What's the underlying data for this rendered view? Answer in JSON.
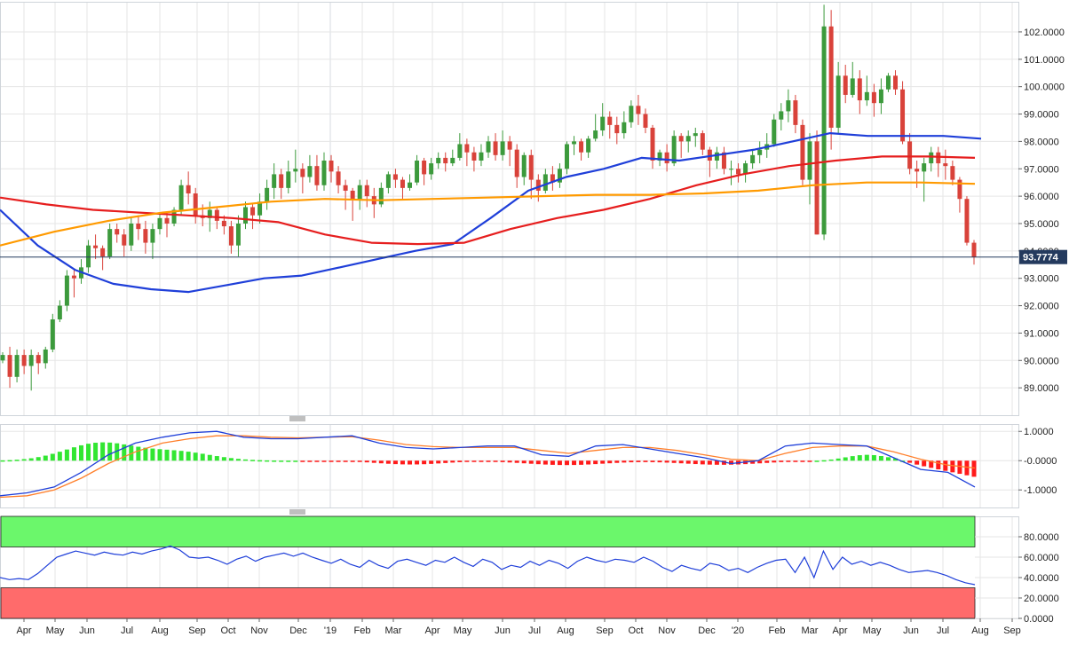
{
  "chart_data": [
    {
      "type": "candlestick",
      "panel": "price",
      "y_ticks": [
        89,
        90,
        91,
        92,
        93,
        94,
        95,
        96,
        97,
        98,
        99,
        100,
        101,
        102
      ],
      "y_tick_labels": [
        "89.0000",
        "90.0000",
        "91.0000",
        "92.0000",
        "93.0000",
        "94.0000",
        "95.0000",
        "96.0000",
        "97.0000",
        "98.0000",
        "99.0000",
        "100.0000",
        "101.0000",
        "102.0000"
      ],
      "ylim": [
        88.0,
        103.1
      ],
      "last_price_label": "93.7774",
      "last_price": 93.7774,
      "candles": [
        [
          90.0,
          90.2,
          89.9,
          90.3
        ],
        [
          90.2,
          89.4,
          89.0,
          90.5
        ],
        [
          89.4,
          90.2,
          89.2,
          90.4
        ],
        [
          90.2,
          89.8,
          89.5,
          90.4
        ],
        [
          89.8,
          90.2,
          88.9,
          90.4
        ],
        [
          90.2,
          89.9,
          89.5,
          90.3
        ],
        [
          89.9,
          90.4,
          89.7,
          90.5
        ],
        [
          90.4,
          91.5,
          90.3,
          91.7
        ],
        [
          91.5,
          92.0,
          91.4,
          92.2
        ],
        [
          92.0,
          93.1,
          91.8,
          93.3
        ],
        [
          93.1,
          93.0,
          92.3,
          93.3
        ],
        [
          93.0,
          93.4,
          92.8,
          93.7
        ],
        [
          93.4,
          94.2,
          93.2,
          94.4
        ],
        [
          94.2,
          94.1,
          93.7,
          94.6
        ],
        [
          94.1,
          93.8,
          93.3,
          94.2
        ],
        [
          93.8,
          94.8,
          93.7,
          95.0
        ],
        [
          94.8,
          94.6,
          94.3,
          95.0
        ],
        [
          94.6,
          94.2,
          93.8,
          94.8
        ],
        [
          94.2,
          95.0,
          94.0,
          95.2
        ],
        [
          95.0,
          94.8,
          94.4,
          95.3
        ],
        [
          94.8,
          94.3,
          93.9,
          95.1
        ],
        [
          94.3,
          94.8,
          93.7,
          95.0
        ],
        [
          94.8,
          95.2,
          94.6,
          95.4
        ],
        [
          95.2,
          95.0,
          94.5,
          95.4
        ],
        [
          95.0,
          95.5,
          94.9,
          95.6
        ],
        [
          95.5,
          96.4,
          95.3,
          96.6
        ],
        [
          96.4,
          96.1,
          95.7,
          96.9
        ],
        [
          96.1,
          95.3,
          95.0,
          96.3
        ],
        [
          95.3,
          95.2,
          94.9,
          95.7
        ],
        [
          95.2,
          95.5,
          94.7,
          95.8
        ],
        [
          95.5,
          95.1,
          94.8,
          95.6
        ],
        [
          95.1,
          94.9,
          94.6,
          95.3
        ],
        [
          94.9,
          94.2,
          93.9,
          95.1
        ],
        [
          94.2,
          95.0,
          93.8,
          95.3
        ],
        [
          95.0,
          95.6,
          94.8,
          95.8
        ],
        [
          95.6,
          95.3,
          94.8,
          95.7
        ],
        [
          95.3,
          95.8,
          95.0,
          96.1
        ],
        [
          95.8,
          96.3,
          95.5,
          96.6
        ],
        [
          96.3,
          96.8,
          95.9,
          97.2
        ],
        [
          96.8,
          96.3,
          95.9,
          97.0
        ],
        [
          96.3,
          96.9,
          96.1,
          97.3
        ],
        [
          96.9,
          97.0,
          96.5,
          97.7
        ],
        [
          97.0,
          96.7,
          96.1,
          97.2
        ],
        [
          96.7,
          97.1,
          96.5,
          97.5
        ],
        [
          97.1,
          96.4,
          96.2,
          97.5
        ],
        [
          96.4,
          97.3,
          96.2,
          97.6
        ],
        [
          97.3,
          96.9,
          96.5,
          97.5
        ],
        [
          96.9,
          96.4,
          96.1,
          97.1
        ],
        [
          96.4,
          96.2,
          95.5,
          96.6
        ],
        [
          96.2,
          95.9,
          95.1,
          96.3
        ],
        [
          95.9,
          96.4,
          95.5,
          96.6
        ],
        [
          96.4,
          96.0,
          95.6,
          96.6
        ],
        [
          96.0,
          95.7,
          95.2,
          96.3
        ],
        [
          95.7,
          96.3,
          95.6,
          96.5
        ],
        [
          96.3,
          96.8,
          96.1,
          96.9
        ],
        [
          96.8,
          96.6,
          96.3,
          97.0
        ],
        [
          96.6,
          96.3,
          95.9,
          96.7
        ],
        [
          96.3,
          96.5,
          96.2,
          96.8
        ],
        [
          96.5,
          97.3,
          96.4,
          97.5
        ],
        [
          97.3,
          96.8,
          96.4,
          97.4
        ],
        [
          96.8,
          97.2,
          96.6,
          97.4
        ],
        [
          97.2,
          97.4,
          97.0,
          97.6
        ],
        [
          97.4,
          97.2,
          96.9,
          97.6
        ],
        [
          97.2,
          97.4,
          97.1,
          97.7
        ],
        [
          97.4,
          97.9,
          97.3,
          98.3
        ],
        [
          97.9,
          97.6,
          97.1,
          98.1
        ],
        [
          97.6,
          97.3,
          96.9,
          97.8
        ],
        [
          97.3,
          97.6,
          97.1,
          97.9
        ],
        [
          97.6,
          98.0,
          97.4,
          98.2
        ],
        [
          98.0,
          97.5,
          97.3,
          98.3
        ],
        [
          97.5,
          98.0,
          97.3,
          98.4
        ],
        [
          98.0,
          97.7,
          97.1,
          98.2
        ],
        [
          97.7,
          96.7,
          96.3,
          97.9
        ],
        [
          96.7,
          97.5,
          96.4,
          97.6
        ],
        [
          97.5,
          96.6,
          95.9,
          97.7
        ],
        [
          96.6,
          96.2,
          95.8,
          96.8
        ],
        [
          96.2,
          96.8,
          96.1,
          97.0
        ],
        [
          96.8,
          96.5,
          96.2,
          97.1
        ],
        [
          96.5,
          97.0,
          96.3,
          97.2
        ],
        [
          97.0,
          97.9,
          96.8,
          98.0
        ],
        [
          97.9,
          98.0,
          97.5,
          98.2
        ],
        [
          98.0,
          97.6,
          97.3,
          98.1
        ],
        [
          97.6,
          98.1,
          97.4,
          98.2
        ],
        [
          98.1,
          98.4,
          98.0,
          99.0
        ],
        [
          98.4,
          98.9,
          98.2,
          99.4
        ],
        [
          98.9,
          98.6,
          98.1,
          99.1
        ],
        [
          98.6,
          98.3,
          97.9,
          98.9
        ],
        [
          98.3,
          98.7,
          98.1,
          99.1
        ],
        [
          98.7,
          99.3,
          98.5,
          99.5
        ],
        [
          99.3,
          99.0,
          98.6,
          99.7
        ],
        [
          99.0,
          98.5,
          98.3,
          99.2
        ],
        [
          98.5,
          97.3,
          97.0,
          98.6
        ],
        [
          97.3,
          97.6,
          97.1,
          97.7
        ],
        [
          97.6,
          97.2,
          96.9,
          97.9
        ],
        [
          97.2,
          98.2,
          97.1,
          98.4
        ],
        [
          98.2,
          98.0,
          97.4,
          98.3
        ],
        [
          98.0,
          98.2,
          97.6,
          98.4
        ],
        [
          98.2,
          98.3,
          97.8,
          98.5
        ],
        [
          98.3,
          97.7,
          97.5,
          98.4
        ],
        [
          97.7,
          97.3,
          96.7,
          97.8
        ],
        [
          97.3,
          97.6,
          97.0,
          97.8
        ],
        [
          97.6,
          97.0,
          96.8,
          97.8
        ],
        [
          97.0,
          97.0,
          96.4,
          97.3
        ],
        [
          97.0,
          96.8,
          96.5,
          97.2
        ],
        [
          96.8,
          97.2,
          96.5,
          97.3
        ],
        [
          97.2,
          97.5,
          97.0,
          97.7
        ],
        [
          97.5,
          97.7,
          97.2,
          98.0
        ],
        [
          97.7,
          97.9,
          97.4,
          98.3
        ],
        [
          97.9,
          98.8,
          97.8,
          99.0
        ],
        [
          98.8,
          99.1,
          98.4,
          99.4
        ],
        [
          99.1,
          99.5,
          98.7,
          99.9
        ],
        [
          99.5,
          98.6,
          98.3,
          99.7
        ],
        [
          98.6,
          96.6,
          96.4,
          98.8
        ],
        [
          96.6,
          98.0,
          95.7,
          98.3
        ],
        [
          98.0,
          94.6,
          94.6,
          98.4
        ],
        [
          94.6,
          102.2,
          94.4,
          102.99
        ],
        [
          102.2,
          98.5,
          97.7,
          102.8
        ],
        [
          98.5,
          100.4,
          98.3,
          100.9
        ],
        [
          100.4,
          99.7,
          99.4,
          100.8
        ],
        [
          99.7,
          100.3,
          99.6,
          100.9
        ],
        [
          100.3,
          99.5,
          99.0,
          100.6
        ],
        [
          99.5,
          99.8,
          99.3,
          100.4
        ],
        [
          99.8,
          99.4,
          98.9,
          100.1
        ],
        [
          99.4,
          99.9,
          99.0,
          100.3
        ],
        [
          99.9,
          100.4,
          99.8,
          100.5
        ],
        [
          100.4,
          99.9,
          99.7,
          100.6
        ],
        [
          99.9,
          98.0,
          97.9,
          100.2
        ],
        [
          98.0,
          97.0,
          96.8,
          98.3
        ],
        [
          97.0,
          96.9,
          96.3,
          97.3
        ],
        [
          96.9,
          97.2,
          95.8,
          97.4
        ],
        [
          97.2,
          97.6,
          96.9,
          97.8
        ],
        [
          97.6,
          97.2,
          96.7,
          97.8
        ],
        [
          97.2,
          97.1,
          96.6,
          97.7
        ],
        [
          97.1,
          96.6,
          96.4,
          97.3
        ],
        [
          96.6,
          95.9,
          95.4,
          96.7
        ],
        [
          95.9,
          94.3,
          94.2,
          96.0
        ],
        [
          94.3,
          93.7774,
          93.5,
          94.4
        ]
      ],
      "series": [
        {
          "name": "",
          "color": "#1f3fd9",
          "values": [
            95.5,
            94.2,
            93.3,
            92.8,
            92.6,
            92.5,
            92.75,
            93.0,
            93.1,
            93.4,
            93.7,
            94.0,
            94.25,
            95.2,
            96.2,
            96.7,
            97.0,
            97.4,
            97.3,
            97.5,
            97.7,
            98.0,
            98.3,
            98.2,
            98.2,
            98.2,
            98.1
          ]
        },
        {
          "name": "",
          "color": "#e61e1e",
          "values": [
            95.95,
            95.7,
            95.5,
            95.4,
            95.3,
            95.2,
            95.05,
            94.6,
            94.3,
            94.25,
            94.3,
            94.8,
            95.2,
            95.5,
            95.9,
            96.4,
            96.8,
            97.1,
            97.3,
            97.45,
            97.45,
            97.4
          ]
        },
        {
          "name": "",
          "color": "#ff9a00",
          "values": [
            94.2,
            94.7,
            95.1,
            95.4,
            95.6,
            95.8,
            95.9,
            95.85,
            95.9,
            95.95,
            96.0,
            96.05,
            96.05,
            96.1,
            96.2,
            96.4,
            96.5,
            96.5,
            96.45
          ]
        }
      ]
    },
    {
      "type": "bar",
      "panel": "macd",
      "y_ticks": [
        1,
        0,
        -1
      ],
      "y_tick_labels": [
        "1.0000",
        "-0.0000",
        "-1.0000"
      ],
      "ylim": [
        -1.6,
        1.25
      ]
    },
    {
      "type": "line",
      "panel": "oscillator",
      "y_ticks": [
        80,
        60,
        40,
        20,
        0
      ],
      "y_tick_labels": [
        "80.0000",
        "60.0000",
        "40.0000",
        "20.0000",
        "0.0000"
      ],
      "ylim": [
        0,
        100
      ],
      "upper_band": [
        70,
        100
      ],
      "lower_band": [
        0,
        30
      ],
      "series": [
        {
          "name": "",
          "color": "#1f3fd9",
          "values": [
            40,
            38,
            39,
            38,
            44,
            52,
            60,
            63,
            66,
            64,
            62,
            65,
            63,
            62,
            65,
            63,
            66,
            68,
            71,
            67,
            60,
            59,
            60,
            57,
            53,
            58,
            61,
            56,
            60,
            62,
            64,
            61,
            64,
            60,
            57,
            54,
            58,
            53,
            50,
            57,
            52,
            49,
            56,
            58,
            55,
            52,
            57,
            55,
            60,
            55,
            51,
            58,
            55,
            48,
            52,
            50,
            56,
            52,
            57,
            54,
            49,
            56,
            60,
            57,
            55,
            58,
            57,
            55,
            60,
            56,
            50,
            46,
            52,
            49,
            47,
            54,
            52,
            47,
            49,
            45,
            50,
            54,
            57,
            58,
            45,
            60,
            40,
            66,
            48,
            60,
            53,
            56,
            52,
            55,
            52,
            48,
            45,
            46,
            47,
            45,
            42,
            38,
            35,
            33
          ]
        }
      ]
    },
    {
      "type": "axis",
      "panel": "time-axis",
      "x_labels": [
        "Apr",
        "May",
        "Jun",
        "Jul",
        "Aug",
        "Sep",
        "Oct",
        "Nov",
        "Dec",
        "'19",
        "Feb",
        "Mar",
        "Apr",
        "May",
        "Jun",
        "Jul",
        "Aug",
        "Sep",
        "Oct",
        "Nov",
        "Dec",
        "'20",
        "Feb",
        "Mar",
        "Apr",
        "May",
        "Jun",
        "Jul",
        "Aug",
        "Sep"
      ],
      "year_separators": [
        "'19",
        "'20"
      ]
    }
  ],
  "colors": {
    "up": "#3c9a3c",
    "down": "#d9423a",
    "grid": "#e6e6e6",
    "axis_text": "#222222",
    "label_bg": "#243a5e",
    "macd_pos": "#32e632",
    "macd_neg": "#ff1a1a",
    "band_upper": "#6bf76b",
    "band_lower": "#ff6b6b"
  }
}
